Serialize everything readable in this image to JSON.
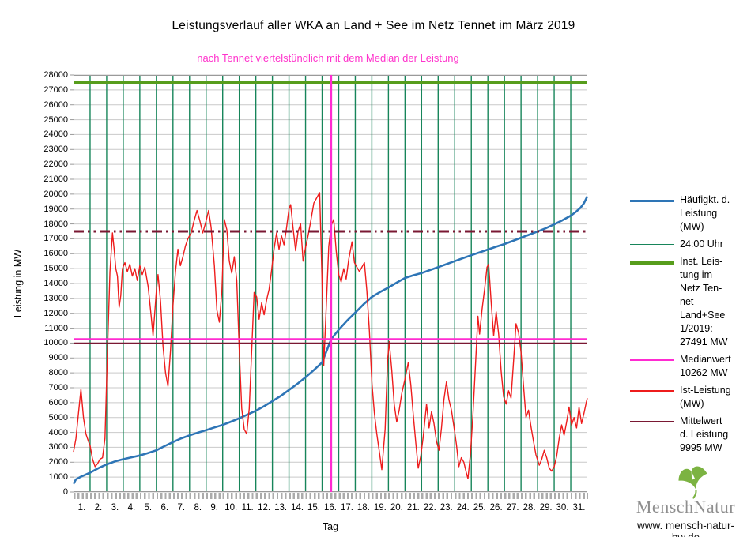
{
  "title": "Leistungsverlauf aller WKA an Land + See im Netz Tennet im März 2019",
  "subtitle": "nach Tennet viertelstündlich mit dem Median der Leistung",
  "subtitle_color": "#ff33cc",
  "axes": {
    "y_label": "Leistung in MW",
    "x_label": "Tag",
    "y_min": 0,
    "y_max": 28000,
    "y_step": 1000,
    "x_min": 0,
    "x_max": 31,
    "x_tick_labels": [
      "1.",
      "2.",
      "3.",
      "4.",
      "5.",
      "6.",
      "7.",
      "8.",
      "9.",
      "10.",
      "11.",
      "12.",
      "13.",
      "14.",
      "15.",
      "16.",
      "17.",
      "18.",
      "19.",
      "20.",
      "21.",
      "22.",
      "23.",
      "24.",
      "25.",
      "26.",
      "27.",
      "28.",
      "29.",
      "30.",
      "31."
    ],
    "grid_color": "#c9c9c9",
    "frame_color": "#9a9a9a"
  },
  "legend": [
    {
      "label": "Häufigkt. d.\nLeistung\n(MW)",
      "color": "#2e75b6",
      "thickness": 3,
      "dash": ""
    },
    {
      "label": "24:00 Uhr",
      "color": "#17855a",
      "thickness": 1,
      "dash": ""
    },
    {
      "label": "Inst. Leis-\ntung im\nNetz Ten-\nnet\nLand+See\n1/2019:\n27491 MW",
      "color": "#579d1c",
      "thickness": 5,
      "dash": ""
    },
    {
      "label": "Medianwert\n10262 MW",
      "color": "#ff2bd1",
      "thickness": 2,
      "dash": ""
    },
    {
      "label": "Ist-Leistung\n(MW)",
      "color": "#ee1c1c",
      "thickness": 2,
      "dash": ""
    },
    {
      "label": "Mittelwert\nd. Leistung\n9995 MW",
      "color": "#7a1833",
      "thickness": 2,
      "dash": ""
    }
  ],
  "chart_data": {
    "type": "line",
    "xlabel": "Tag",
    "ylabel": "Leistung in MW",
    "xlim": [
      0,
      31
    ],
    "ylim": [
      0,
      28000
    ],
    "grid": true,
    "legend_position": "right",
    "day_lines": {
      "note": "24:00 Uhr vertical lines at every day boundary",
      "days_from": 1,
      "days_to": 30,
      "color": "#17855a"
    },
    "reference_lines": {
      "installed_power": {
        "label": "Inst. Leistung im Netz Tennet Land+See 1/2019",
        "value": 27491,
        "color": "#579d1c",
        "width": 4.5,
        "dash": ""
      },
      "dashed_unlabeled": {
        "label": "unlabeled dash-dot reference",
        "value": 17500,
        "color": "#7a1833",
        "width": 3,
        "dash": "13 5 2.5 5 2.5 5"
      },
      "median": {
        "label": "Medianwert",
        "value": 10262,
        "color": "#ff2bd1",
        "width": 2.4,
        "dash": ""
      },
      "mean": {
        "label": "Mittelwert d. Leistung",
        "value": 9995,
        "color": "#7a1833",
        "width": 1.6,
        "dash": ""
      },
      "median_vertical_day": {
        "label": "Median position",
        "day": 15.55,
        "color": "#ff2bd1",
        "width": 2.2
      }
    },
    "series": [
      {
        "name": "Häufigkt. d. Leistung (MW)",
        "color": "#2e75b6",
        "width": 2.6,
        "points": [
          [
            0,
            550
          ],
          [
            0.15,
            850
          ],
          [
            0.4,
            1000
          ],
          [
            0.7,
            1150
          ],
          [
            1,
            1300
          ],
          [
            1.5,
            1600
          ],
          [
            2,
            1850
          ],
          [
            2.5,
            2050
          ],
          [
            3,
            2200
          ],
          [
            3.5,
            2330
          ],
          [
            4,
            2450
          ],
          [
            4.5,
            2620
          ],
          [
            5,
            2800
          ],
          [
            5.5,
            3080
          ],
          [
            6,
            3350
          ],
          [
            6.5,
            3600
          ],
          [
            7,
            3800
          ],
          [
            7.5,
            3980
          ],
          [
            8,
            4150
          ],
          [
            8.5,
            4330
          ],
          [
            9,
            4500
          ],
          [
            9.5,
            4720
          ],
          [
            10,
            4950
          ],
          [
            10.5,
            5200
          ],
          [
            11,
            5450
          ],
          [
            11.5,
            5760
          ],
          [
            12,
            6100
          ],
          [
            12.5,
            6450
          ],
          [
            13,
            6850
          ],
          [
            13.5,
            7260
          ],
          [
            14,
            7700
          ],
          [
            14.5,
            8180
          ],
          [
            15,
            8700
          ],
          [
            15.55,
            10262
          ],
          [
            16,
            10900
          ],
          [
            16.5,
            11500
          ],
          [
            17,
            12050
          ],
          [
            17.5,
            12600
          ],
          [
            18,
            13100
          ],
          [
            18.5,
            13430
          ],
          [
            19,
            13730
          ],
          [
            19.5,
            14060
          ],
          [
            20,
            14370
          ],
          [
            20.5,
            14550
          ],
          [
            21,
            14700
          ],
          [
            21.5,
            14900
          ],
          [
            22,
            15100
          ],
          [
            22.5,
            15300
          ],
          [
            23,
            15500
          ],
          [
            23.5,
            15700
          ],
          [
            24,
            15900
          ],
          [
            24.5,
            16090
          ],
          [
            25,
            16280
          ],
          [
            25.5,
            16470
          ],
          [
            26,
            16650
          ],
          [
            26.5,
            16860
          ],
          [
            27,
            17070
          ],
          [
            27.5,
            17280
          ],
          [
            28,
            17490
          ],
          [
            28.5,
            17720
          ],
          [
            29,
            17970
          ],
          [
            29.5,
            18250
          ],
          [
            30,
            18550
          ],
          [
            30.3,
            18800
          ],
          [
            30.6,
            19100
          ],
          [
            30.8,
            19400
          ],
          [
            31,
            19850
          ]
        ]
      },
      {
        "name": "Ist-Leistung (MW)",
        "color": "#ee1c1c",
        "width": 1.4,
        "points": [
          [
            0,
            2700
          ],
          [
            0.15,
            3600
          ],
          [
            0.3,
            5300
          ],
          [
            0.45,
            6900
          ],
          [
            0.6,
            5000
          ],
          [
            0.75,
            3900
          ],
          [
            0.9,
            3400
          ],
          [
            1,
            3100
          ],
          [
            1.15,
            2200
          ],
          [
            1.3,
            1700
          ],
          [
            1.45,
            1900
          ],
          [
            1.6,
            2200
          ],
          [
            1.75,
            2300
          ],
          [
            1.9,
            3600
          ],
          [
            2.05,
            9500
          ],
          [
            2.2,
            14800
          ],
          [
            2.35,
            17400
          ],
          [
            2.45,
            16300
          ],
          [
            2.55,
            15000
          ],
          [
            2.65,
            14500
          ],
          [
            2.75,
            12400
          ],
          [
            2.85,
            13200
          ],
          [
            2.95,
            15000
          ],
          [
            3.1,
            15400
          ],
          [
            3.25,
            14800
          ],
          [
            3.4,
            15300
          ],
          [
            3.55,
            14500
          ],
          [
            3.7,
            15000
          ],
          [
            3.85,
            14200
          ],
          [
            4,
            15200
          ],
          [
            4.15,
            14600
          ],
          [
            4.3,
            15100
          ],
          [
            4.5,
            13800
          ],
          [
            4.65,
            12200
          ],
          [
            4.8,
            10500
          ],
          [
            5,
            13500
          ],
          [
            5.1,
            14600
          ],
          [
            5.25,
            12800
          ],
          [
            5.4,
            9800
          ],
          [
            5.55,
            8000
          ],
          [
            5.7,
            7100
          ],
          [
            5.85,
            9500
          ],
          [
            6,
            12500
          ],
          [
            6.15,
            14800
          ],
          [
            6.3,
            16300
          ],
          [
            6.45,
            15200
          ],
          [
            6.6,
            15800
          ],
          [
            6.75,
            16500
          ],
          [
            6.9,
            17000
          ],
          [
            7.1,
            17400
          ],
          [
            7.25,
            18100
          ],
          [
            7.45,
            18900
          ],
          [
            7.6,
            18300
          ],
          [
            7.8,
            17400
          ],
          [
            8,
            18200
          ],
          [
            8.15,
            18900
          ],
          [
            8.3,
            17800
          ],
          [
            8.5,
            15200
          ],
          [
            8.65,
            12200
          ],
          [
            8.8,
            11400
          ],
          [
            8.95,
            13500
          ],
          [
            9.1,
            18300
          ],
          [
            9.25,
            17600
          ],
          [
            9.4,
            15500
          ],
          [
            9.55,
            14700
          ],
          [
            9.7,
            15800
          ],
          [
            9.85,
            14200
          ],
          [
            10,
            9500
          ],
          [
            10.15,
            5600
          ],
          [
            10.3,
            4200
          ],
          [
            10.45,
            3900
          ],
          [
            10.6,
            5600
          ],
          [
            10.75,
            9500
          ],
          [
            10.9,
            13400
          ],
          [
            11.05,
            13100
          ],
          [
            11.2,
            11600
          ],
          [
            11.35,
            12700
          ],
          [
            11.5,
            11900
          ],
          [
            11.65,
            12900
          ],
          [
            11.8,
            13600
          ],
          [
            11.95,
            14900
          ],
          [
            12.1,
            16300
          ],
          [
            12.25,
            17400
          ],
          [
            12.4,
            16300
          ],
          [
            12.55,
            17200
          ],
          [
            12.7,
            16600
          ],
          [
            12.85,
            17700
          ],
          [
            13,
            19000
          ],
          [
            13.1,
            19300
          ],
          [
            13.25,
            17700
          ],
          [
            13.4,
            16200
          ],
          [
            13.55,
            17500
          ],
          [
            13.7,
            18000
          ],
          [
            13.85,
            15500
          ],
          [
            14,
            16400
          ],
          [
            14.15,
            17200
          ],
          [
            14.3,
            18100
          ],
          [
            14.5,
            19400
          ],
          [
            14.7,
            19800
          ],
          [
            14.85,
            20100
          ],
          [
            15,
            14000
          ],
          [
            15.1,
            8500
          ],
          [
            15.25,
            12500
          ],
          [
            15.4,
            16500
          ],
          [
            15.55,
            17900
          ],
          [
            15.7,
            18300
          ],
          [
            15.85,
            16200
          ],
          [
            16,
            14600
          ],
          [
            16.15,
            14100
          ],
          [
            16.3,
            15000
          ],
          [
            16.45,
            14300
          ],
          [
            16.6,
            15600
          ],
          [
            16.8,
            16800
          ],
          [
            16.95,
            15400
          ],
          [
            17.1,
            15100
          ],
          [
            17.25,
            14800
          ],
          [
            17.4,
            15100
          ],
          [
            17.55,
            15400
          ],
          [
            17.7,
            13500
          ],
          [
            17.85,
            10800
          ],
          [
            18,
            7400
          ],
          [
            18.15,
            5300
          ],
          [
            18.3,
            3900
          ],
          [
            18.45,
            2700
          ],
          [
            18.6,
            1500
          ],
          [
            18.8,
            4200
          ],
          [
            18.95,
            8800
          ],
          [
            19.05,
            10100
          ],
          [
            19.2,
            8200
          ],
          [
            19.35,
            5900
          ],
          [
            19.5,
            4700
          ],
          [
            19.65,
            5500
          ],
          [
            19.8,
            6600
          ],
          [
            20,
            7600
          ],
          [
            20.2,
            8700
          ],
          [
            20.35,
            7200
          ],
          [
            20.5,
            5200
          ],
          [
            20.65,
            3300
          ],
          [
            20.8,
            1600
          ],
          [
            20.95,
            2400
          ],
          [
            21.1,
            3700
          ],
          [
            21.3,
            5900
          ],
          [
            21.45,
            4300
          ],
          [
            21.6,
            5400
          ],
          [
            21.75,
            4600
          ],
          [
            21.9,
            3400
          ],
          [
            22.05,
            2800
          ],
          [
            22.2,
            4300
          ],
          [
            22.35,
            6200
          ],
          [
            22.5,
            7400
          ],
          [
            22.65,
            6200
          ],
          [
            22.8,
            5500
          ],
          [
            22.95,
            4400
          ],
          [
            23.1,
            3200
          ],
          [
            23.25,
            1700
          ],
          [
            23.4,
            2300
          ],
          [
            23.55,
            2000
          ],
          [
            23.7,
            1300
          ],
          [
            23.8,
            900
          ],
          [
            23.95,
            2600
          ],
          [
            24.1,
            5200
          ],
          [
            24.25,
            8500
          ],
          [
            24.4,
            11800
          ],
          [
            24.5,
            10600
          ],
          [
            24.65,
            12300
          ],
          [
            24.8,
            13600
          ],
          [
            24.95,
            15100
          ],
          [
            25.05,
            15300
          ],
          [
            25.2,
            12700
          ],
          [
            25.35,
            10500
          ],
          [
            25.5,
            12100
          ],
          [
            25.65,
            10600
          ],
          [
            25.8,
            8100
          ],
          [
            25.95,
            6400
          ],
          [
            26.1,
            5900
          ],
          [
            26.25,
            6800
          ],
          [
            26.4,
            6300
          ],
          [
            26.55,
            8800
          ],
          [
            26.7,
            11300
          ],
          [
            26.85,
            10700
          ],
          [
            27,
            9400
          ],
          [
            27.15,
            7100
          ],
          [
            27.3,
            5000
          ],
          [
            27.45,
            5500
          ],
          [
            27.6,
            4400
          ],
          [
            27.75,
            3400
          ],
          [
            27.9,
            2500
          ],
          [
            28.1,
            1800
          ],
          [
            28.25,
            2200
          ],
          [
            28.4,
            2800
          ],
          [
            28.55,
            2300
          ],
          [
            28.7,
            1600
          ],
          [
            28.85,
            1400
          ],
          [
            29,
            1700
          ],
          [
            29.15,
            2400
          ],
          [
            29.3,
            3600
          ],
          [
            29.45,
            4500
          ],
          [
            29.6,
            3800
          ],
          [
            29.75,
            4700
          ],
          [
            29.9,
            5700
          ],
          [
            30.05,
            4500
          ],
          [
            30.2,
            5000
          ],
          [
            30.35,
            4300
          ],
          [
            30.5,
            5700
          ],
          [
            30.65,
            4600
          ],
          [
            30.8,
            5300
          ],
          [
            30.95,
            6100
          ],
          [
            31,
            6300
          ]
        ]
      }
    ]
  },
  "logo": {
    "brand": "MenschNatur",
    "url": "www. mensch-natur-bw.de",
    "leaf_color": "#7cb342"
  }
}
